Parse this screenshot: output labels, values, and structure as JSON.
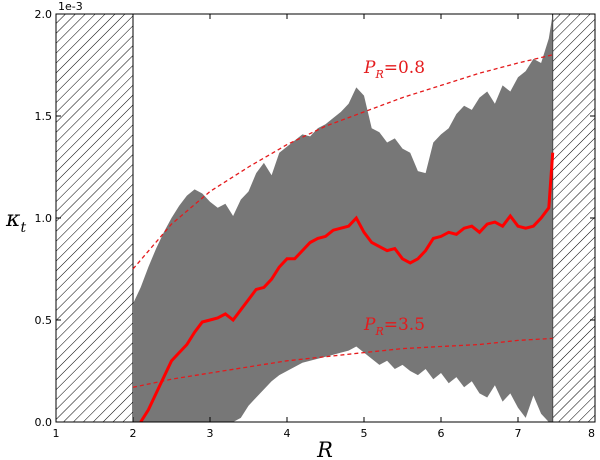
{
  "chart_data": {
    "type": "area",
    "xlabel": "R",
    "ylabel": "κ",
    "ylabel_sub": "t",
    "y_scale_label": "1e-3",
    "xlim": [
      1,
      8
    ],
    "ylim": [
      0,
      2.0
    ],
    "x_ticks": [
      1,
      2,
      3,
      4,
      5,
      6,
      7,
      8
    ],
    "y_ticks": [
      0.0,
      0.5,
      1.0,
      1.5,
      2.0
    ],
    "x_tick_labels": [
      "1",
      "2",
      "3",
      "4",
      "5",
      "6",
      "7",
      "8"
    ],
    "y_tick_labels": [
      "0.0",
      "0.5",
      "1.0",
      "1.5",
      "2.0"
    ],
    "grid": false,
    "hatched_regions": [
      [
        1,
        2
      ],
      [
        7.45,
        8
      ]
    ],
    "colors": {
      "band": "#777777",
      "mean_line": "#ff0000",
      "model_lines": "#e41a1c"
    },
    "band_upper": {
      "x": [
        2.0,
        2.1,
        2.2,
        2.3,
        2.4,
        2.5,
        2.6,
        2.7,
        2.8,
        2.9,
        3.0,
        3.1,
        3.2,
        3.3,
        3.4,
        3.5,
        3.6,
        3.7,
        3.8,
        3.9,
        4.0,
        4.1,
        4.2,
        4.3,
        4.4,
        4.5,
        4.6,
        4.7,
        4.8,
        4.9,
        5.0,
        5.1,
        5.2,
        5.3,
        5.4,
        5.5,
        5.6,
        5.7,
        5.8,
        5.9,
        6.0,
        6.1,
        6.2,
        6.3,
        6.4,
        6.5,
        6.6,
        6.7,
        6.8,
        6.9,
        7.0,
        7.1,
        7.2,
        7.3,
        7.4,
        7.45
      ],
      "y": [
        0.58,
        0.66,
        0.76,
        0.85,
        0.93,
        1.0,
        1.06,
        1.11,
        1.14,
        1.12,
        1.08,
        1.05,
        1.07,
        1.01,
        1.09,
        1.13,
        1.22,
        1.27,
        1.21,
        1.32,
        1.35,
        1.38,
        1.41,
        1.4,
        1.44,
        1.46,
        1.49,
        1.52,
        1.56,
        1.64,
        1.6,
        1.44,
        1.42,
        1.37,
        1.39,
        1.34,
        1.32,
        1.23,
        1.22,
        1.37,
        1.41,
        1.44,
        1.51,
        1.55,
        1.53,
        1.59,
        1.62,
        1.56,
        1.65,
        1.62,
        1.69,
        1.72,
        1.78,
        1.76,
        1.88,
        2.0
      ]
    },
    "band_lower": {
      "x": [
        2.0,
        2.1,
        2.2,
        2.3,
        2.4,
        2.5,
        2.6,
        2.7,
        2.8,
        2.9,
        3.0,
        3.1,
        3.2,
        3.3,
        3.4,
        3.5,
        3.6,
        3.7,
        3.8,
        3.9,
        4.0,
        4.1,
        4.2,
        4.3,
        4.4,
        4.5,
        4.6,
        4.7,
        4.8,
        4.9,
        5.0,
        5.1,
        5.2,
        5.3,
        5.4,
        5.5,
        5.6,
        5.7,
        5.8,
        5.9,
        6.0,
        6.1,
        6.2,
        6.3,
        6.4,
        6.5,
        6.6,
        6.7,
        6.8,
        6.9,
        7.0,
        7.1,
        7.2,
        7.3,
        7.4,
        7.45
      ],
      "y": [
        0.0,
        0.0,
        0.0,
        0.0,
        0.0,
        0.0,
        0.0,
        0.0,
        0.0,
        0.0,
        0.0,
        0.0,
        0.0,
        0.0,
        0.02,
        0.08,
        0.12,
        0.16,
        0.2,
        0.23,
        0.25,
        0.27,
        0.29,
        0.3,
        0.31,
        0.32,
        0.33,
        0.34,
        0.35,
        0.37,
        0.34,
        0.31,
        0.28,
        0.3,
        0.26,
        0.28,
        0.25,
        0.23,
        0.26,
        0.21,
        0.24,
        0.19,
        0.22,
        0.17,
        0.2,
        0.14,
        0.12,
        0.18,
        0.1,
        0.14,
        0.07,
        0.02,
        0.13,
        0.04,
        0.0,
        0.0
      ]
    },
    "series": [
      {
        "x": [
          2.1,
          2.2,
          2.3,
          2.4,
          2.5,
          2.6,
          2.7,
          2.8,
          2.9,
          3.0,
          3.1,
          3.2,
          3.3,
          3.4,
          3.5,
          3.6,
          3.7,
          3.8,
          3.9,
          4.0,
          4.1,
          4.2,
          4.3,
          4.4,
          4.5,
          4.6,
          4.7,
          4.8,
          4.9,
          5.0,
          5.1,
          5.2,
          5.3,
          5.4,
          5.5,
          5.6,
          5.7,
          5.8,
          5.9,
          6.0,
          6.1,
          6.2,
          6.3,
          6.4,
          6.5,
          6.6,
          6.7,
          6.8,
          6.9,
          7.0,
          7.1,
          7.2,
          7.3,
          7.4,
          7.45
        ],
        "y": [
          0.0,
          0.06,
          0.14,
          0.22,
          0.3,
          0.34,
          0.38,
          0.44,
          0.49,
          0.5,
          0.51,
          0.53,
          0.5,
          0.55,
          0.6,
          0.65,
          0.66,
          0.7,
          0.76,
          0.8,
          0.8,
          0.84,
          0.88,
          0.9,
          0.91,
          0.94,
          0.95,
          0.96,
          1.0,
          0.93,
          0.88,
          0.86,
          0.84,
          0.85,
          0.8,
          0.78,
          0.8,
          0.84,
          0.9,
          0.91,
          0.93,
          0.92,
          0.95,
          0.96,
          0.93,
          0.97,
          0.98,
          0.96,
          1.01,
          0.96,
          0.95,
          0.96,
          1.0,
          1.05,
          1.32
        ]
      },
      {
        "x": [
          2.0,
          2.5,
          3.0,
          3.5,
          4.0,
          4.5,
          5.0,
          5.5,
          6.0,
          6.5,
          7.0,
          7.45
        ],
        "y": [
          0.75,
          0.97,
          1.13,
          1.25,
          1.36,
          1.45,
          1.52,
          1.59,
          1.65,
          1.71,
          1.76,
          1.8
        ]
      },
      {
        "x": [
          2.0,
          2.5,
          3.0,
          3.5,
          4.0,
          4.5,
          5.0,
          5.5,
          6.0,
          6.5,
          7.0,
          7.45
        ],
        "y": [
          0.17,
          0.21,
          0.24,
          0.27,
          0.3,
          0.32,
          0.34,
          0.36,
          0.37,
          0.38,
          0.4,
          0.41
        ]
      }
    ],
    "annotations": [
      {
        "label": "P",
        "sub": "R",
        "text": "=0.8",
        "x": 5.0,
        "y": 1.71
      },
      {
        "label": "P",
        "sub": "R",
        "text": "=3.5",
        "x": 5.0,
        "y": 0.45
      }
    ]
  }
}
